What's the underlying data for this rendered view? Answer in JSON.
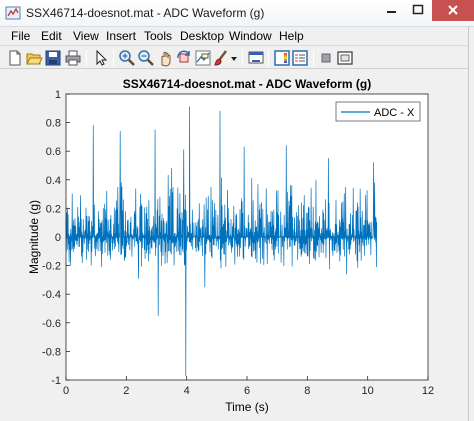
{
  "window": {
    "title": "SSX46714-doesnot.mat - ADC Waveform (g)",
    "app_icon": "matlab-figure-icon",
    "close_color": "#c75050"
  },
  "menu": {
    "items": [
      "File",
      "Edit",
      "View",
      "Insert",
      "Tools",
      "Desktop",
      "Window",
      "Help"
    ]
  },
  "toolbar": {
    "icons": [
      "new-figure-icon",
      "open-file-icon",
      "save-icon",
      "print-icon",
      "edit-plot-arrow-icon",
      "zoom-in-icon",
      "zoom-out-icon",
      "pan-icon",
      "rotate-3d-icon",
      "data-cursor-icon",
      "brush-icon",
      "brush-dropdown-icon",
      "link-plot-icon",
      "insert-colorbar-icon",
      "insert-legend-icon",
      "hide-plot-tools-icon",
      "show-plot-tools-icon"
    ]
  },
  "chart_data": {
    "type": "line",
    "title": "SSX46714-doesnot.mat - ADC Waveform (g)",
    "xlabel": "Time (s)",
    "ylabel": "Magnitude (g)",
    "xlim": [
      0,
      12
    ],
    "ylim": [
      -1,
      1
    ],
    "xticks": [
      "0",
      "2",
      "4",
      "6",
      "8",
      "10",
      "12"
    ],
    "yticks": [
      "1",
      "0.8",
      "0.6",
      "0.4",
      "0.2",
      "0",
      "-0.2",
      "-0.4",
      "-0.6",
      "-0.8",
      "-1"
    ],
    "legend_position": "top-right",
    "series": [
      {
        "name": "ADC - X",
        "color": "#0072bd",
        "x_range": [
          0,
          10.3
        ],
        "baseline": 0.0,
        "typical_band": [
          -0.25,
          0.45
        ],
        "notable_points": [
          {
            "x": 0.9,
            "y": 0.78
          },
          {
            "x": 1.8,
            "y": 0.74
          },
          {
            "x": 2.4,
            "y": -0.29
          },
          {
            "x": 2.95,
            "y": 0.75
          },
          {
            "x": 3.05,
            "y": -0.55
          },
          {
            "x": 3.5,
            "y": 0.48
          },
          {
            "x": 3.9,
            "y": 0.61
          },
          {
            "x": 3.97,
            "y": -0.97
          },
          {
            "x": 4.1,
            "y": 0.91
          },
          {
            "x": 4.6,
            "y": -0.35
          },
          {
            "x": 5.1,
            "y": 0.88
          },
          {
            "x": 5.9,
            "y": 0.63
          },
          {
            "x": 7.3,
            "y": 0.64
          },
          {
            "x": 8.7,
            "y": 0.55
          },
          {
            "x": 9.3,
            "y": -0.26
          },
          {
            "x": 10.2,
            "y": 0.52
          }
        ]
      }
    ]
  }
}
